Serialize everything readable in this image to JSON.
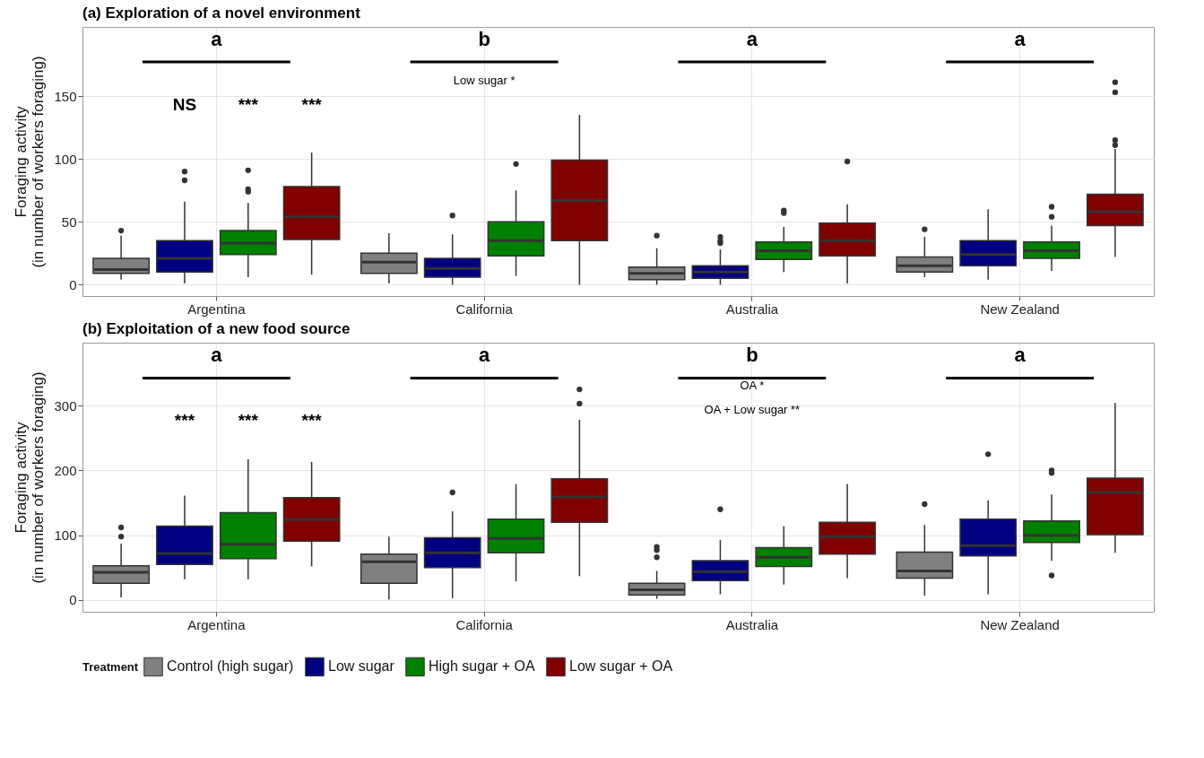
{
  "chart_data": [
    {
      "type": "box",
      "title": "(a) Exploration of a novel environment",
      "ylabel": "Foraging activity\n(in number of workers foraging)",
      "categories": [
        "Argentina",
        "California",
        "Australia",
        "New Zealand"
      ],
      "ylim": [
        -9,
        205
      ],
      "yticks": [
        0,
        50,
        100,
        150
      ],
      "grid": true,
      "series": [
        {
          "color": "#808080",
          "boxes": [
            {
              "low": 4,
              "q1": 9,
              "median": 12,
              "q3": 21,
              "high": 39,
              "outliers": [
                43
              ]
            },
            {
              "low": 1,
              "q1": 9,
              "median": 18,
              "q3": 25,
              "high": 41
            },
            {
              "low": 0,
              "q1": 4,
              "median": 9,
              "q3": 14,
              "high": 29,
              "outliers": [
                39
              ]
            },
            {
              "low": 6,
              "q1": 10,
              "median": 15,
              "q3": 22,
              "high": 38,
              "outliers": [
                44
              ]
            }
          ]
        },
        {
          "color": "#000080",
          "boxes": [
            {
              "low": 1,
              "q1": 10,
              "median": 21,
              "q3": 35,
              "high": 66,
              "outliers": [
                83,
                90
              ]
            },
            {
              "low": 0,
              "q1": 6,
              "median": 13,
              "q3": 21,
              "high": 40,
              "outliers": [
                55
              ]
            },
            {
              "low": 0,
              "q1": 5,
              "median": 10,
              "q3": 15,
              "high": 28,
              "outliers": [
                33,
                35,
                38
              ]
            },
            {
              "low": 4,
              "q1": 15,
              "median": 24,
              "q3": 35,
              "high": 60
            }
          ]
        },
        {
          "color": "#008000",
          "boxes": [
            {
              "low": 6,
              "q1": 24,
              "median": 33,
              "q3": 43,
              "high": 65,
              "outliers": [
                74,
                76,
                91
              ]
            },
            {
              "low": 7,
              "q1": 23,
              "median": 35,
              "q3": 50,
              "high": 75,
              "outliers": [
                96
              ]
            },
            {
              "low": 10,
              "q1": 20,
              "median": 27,
              "q3": 34,
              "high": 46,
              "outliers": [
                57,
                59
              ]
            },
            {
              "low": 11,
              "q1": 21,
              "median": 27,
              "q3": 34,
              "high": 47,
              "outliers": [
                54,
                62
              ]
            }
          ]
        },
        {
          "color": "#800000",
          "boxes": [
            {
              "low": 8,
              "q1": 36,
              "median": 54,
              "q3": 78,
              "high": 105
            },
            {
              "low": 0,
              "q1": 35,
              "median": 67,
              "q3": 99,
              "high": 135
            },
            {
              "low": 1,
              "q1": 23,
              "median": 35,
              "q3": 49,
              "high": 64,
              "outliers": [
                98
              ]
            },
            {
              "low": 22,
              "q1": 47,
              "median": 58,
              "q3": 72,
              "high": 108,
              "outliers": [
                111,
                115,
                153,
                161
              ]
            }
          ]
        }
      ],
      "annotations": [
        "a",
        "b",
        "a",
        "a",
        "NS",
        "***",
        "***",
        "Low sugar *"
      ]
    },
    {
      "type": "box",
      "title": "(b) Exploitation of a new food source",
      "ylabel": "Foraging activity\n(in number of workers foraging)",
      "categories": [
        "Argentina",
        "California",
        "Australia",
        "New Zealand"
      ],
      "ylim": [
        -18,
        397
      ],
      "yticks": [
        0,
        100,
        200,
        300
      ],
      "grid": true,
      "legend": "bottom",
      "legend_title": "Treatment",
      "series": [
        {
          "name": "Control (high sugar)",
          "color": "#808080",
          "boxes": [
            {
              "low": 4,
              "q1": 26,
              "median": 43,
              "q3": 53,
              "high": 87,
              "outliers": [
                98,
                112
              ]
            },
            {
              "low": 1,
              "q1": 26,
              "median": 59,
              "q3": 71,
              "high": 98
            },
            {
              "low": 2,
              "q1": 8,
              "median": 16,
              "q3": 26,
              "high": 45,
              "outliers": [
                66,
                77,
                82
              ]
            },
            {
              "low": 7,
              "q1": 34,
              "median": 45,
              "q3": 74,
              "high": 116,
              "outliers": [
                148
              ]
            }
          ]
        },
        {
          "name": "Low sugar",
          "color": "#000080",
          "boxes": [
            {
              "low": 32,
              "q1": 55,
              "median": 72,
              "q3": 114,
              "high": 161
            },
            {
              "low": 3,
              "q1": 50,
              "median": 73,
              "q3": 96,
              "high": 137,
              "outliers": [
                166
              ]
            },
            {
              "low": 9,
              "q1": 30,
              "median": 44,
              "q3": 61,
              "high": 93,
              "outliers": [
                140
              ]
            },
            {
              "low": 9,
              "q1": 68,
              "median": 84,
              "q3": 125,
              "high": 154,
              "outliers": [
                225
              ]
            }
          ]
        },
        {
          "name": "High sugar + OA",
          "color": "#008000",
          "boxes": [
            {
              "low": 32,
              "q1": 64,
              "median": 86,
              "q3": 135,
              "high": 217
            },
            {
              "low": 29,
              "q1": 73,
              "median": 95,
              "q3": 125,
              "high": 179
            },
            {
              "low": 24,
              "q1": 52,
              "median": 66,
              "q3": 81,
              "high": 114
            },
            {
              "low": 61,
              "q1": 89,
              "median": 100,
              "q3": 122,
              "high": 163,
              "outliers": [
                38,
                196,
                200
              ]
            }
          ]
        },
        {
          "name": "Low sugar + OA",
          "color": "#800000",
          "boxes": [
            {
              "low": 52,
              "q1": 91,
              "median": 124,
              "q3": 158,
              "high": 213
            },
            {
              "low": 37,
              "q1": 120,
              "median": 159,
              "q3": 187,
              "high": 278,
              "outliers": [
                303,
                325
              ]
            },
            {
              "low": 34,
              "q1": 71,
              "median": 98,
              "q3": 120,
              "high": 179
            },
            {
              "low": 73,
              "q1": 101,
              "median": 166,
              "q3": 188,
              "high": 304
            }
          ]
        }
      ],
      "annotations": [
        "a",
        "a",
        "b",
        "a",
        "***",
        "***",
        "***",
        "OA *",
        "OA + Low sugar **"
      ]
    }
  ]
}
